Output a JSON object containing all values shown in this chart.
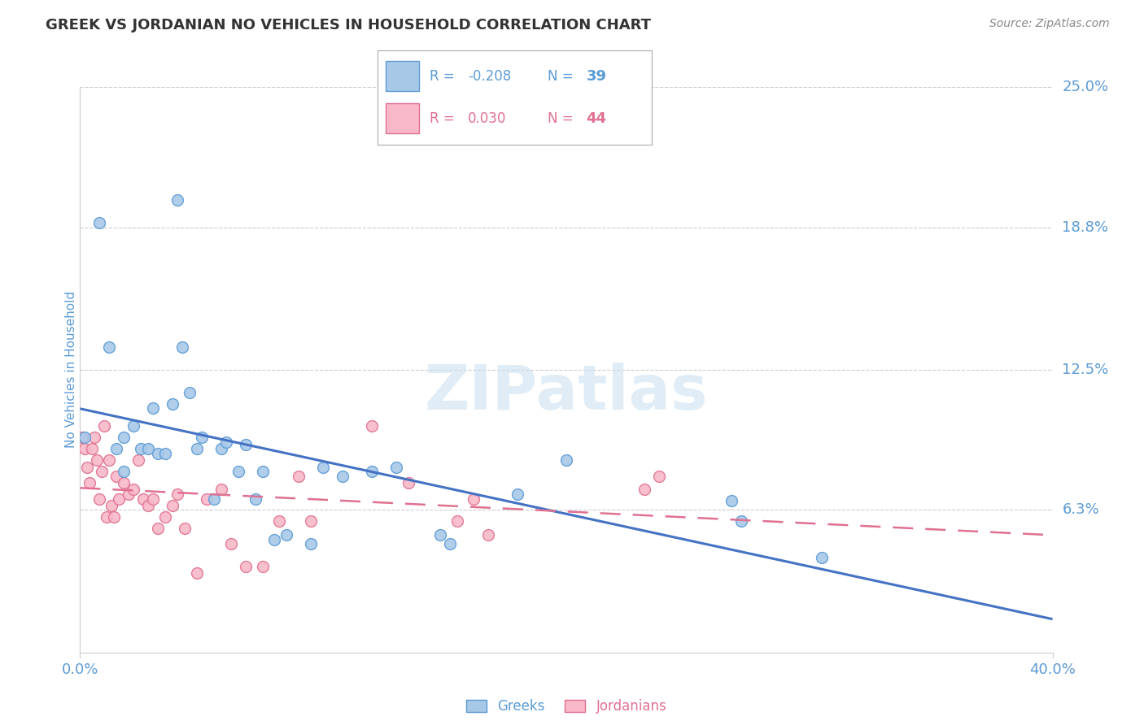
{
  "title": "GREEK VS JORDANIAN NO VEHICLES IN HOUSEHOLD CORRELATION CHART",
  "source": "Source: ZipAtlas.com",
  "ylabel": "No Vehicles in Household",
  "xlim": [
    0.0,
    0.4
  ],
  "ylim": [
    0.0,
    0.25
  ],
  "xtick_labels": [
    "0.0%",
    "40.0%"
  ],
  "ytick_labels": [
    "6.3%",
    "12.5%",
    "18.8%",
    "25.0%"
  ],
  "ytick_values": [
    0.063,
    0.125,
    0.188,
    0.25
  ],
  "watermark": "ZIPatlas",
  "greek_color": "#a8c8e8",
  "jordanian_color": "#f8b8c8",
  "greek_edge_color": "#5b9bd5",
  "jordanian_edge_color": "#e07090",
  "trend_greek_color": "#4472c4",
  "trend_jordanian_color": "#e07090",
  "R_greek": -0.208,
  "N_greek": 39,
  "R_jordanian": 0.03,
  "N_jordanian": 44,
  "greek_x": [
    0.002,
    0.008,
    0.012,
    0.015,
    0.018,
    0.018,
    0.022,
    0.025,
    0.028,
    0.03,
    0.032,
    0.035,
    0.038,
    0.04,
    0.042,
    0.045,
    0.048,
    0.05,
    0.055,
    0.058,
    0.06,
    0.065,
    0.068,
    0.072,
    0.075,
    0.08,
    0.085,
    0.095,
    0.1,
    0.108,
    0.12,
    0.13,
    0.148,
    0.152,
    0.18,
    0.2,
    0.268,
    0.272,
    0.305
  ],
  "greek_y": [
    0.095,
    0.19,
    0.135,
    0.09,
    0.095,
    0.08,
    0.1,
    0.09,
    0.09,
    0.108,
    0.088,
    0.088,
    0.11,
    0.2,
    0.135,
    0.115,
    0.09,
    0.095,
    0.068,
    0.09,
    0.093,
    0.08,
    0.092,
    0.068,
    0.08,
    0.05,
    0.052,
    0.048,
    0.082,
    0.078,
    0.08,
    0.082,
    0.052,
    0.048,
    0.07,
    0.085,
    0.067,
    0.058,
    0.042
  ],
  "jordanian_x": [
    0.001,
    0.002,
    0.003,
    0.004,
    0.005,
    0.006,
    0.007,
    0.008,
    0.009,
    0.01,
    0.011,
    0.012,
    0.013,
    0.014,
    0.015,
    0.016,
    0.018,
    0.02,
    0.022,
    0.024,
    0.026,
    0.028,
    0.03,
    0.032,
    0.035,
    0.038,
    0.04,
    0.043,
    0.048,
    0.052,
    0.058,
    0.062,
    0.068,
    0.075,
    0.082,
    0.09,
    0.095,
    0.12,
    0.135,
    0.155,
    0.162,
    0.168,
    0.232,
    0.238
  ],
  "jordanian_y": [
    0.095,
    0.09,
    0.082,
    0.075,
    0.09,
    0.095,
    0.085,
    0.068,
    0.08,
    0.1,
    0.06,
    0.085,
    0.065,
    0.06,
    0.078,
    0.068,
    0.075,
    0.07,
    0.072,
    0.085,
    0.068,
    0.065,
    0.068,
    0.055,
    0.06,
    0.065,
    0.07,
    0.055,
    0.035,
    0.068,
    0.072,
    0.048,
    0.038,
    0.038,
    0.058,
    0.078,
    0.058,
    0.1,
    0.075,
    0.058,
    0.068,
    0.052,
    0.072,
    0.078
  ],
  "background_color": "#ffffff",
  "grid_color": "#cccccc",
  "title_color": "#333333",
  "axis_label_color": "#5b9bd5",
  "tick_label_color": "#5b9bd5",
  "legend_greek_face": "#a8c8e8",
  "legend_jordan_face": "#f8b8c8",
  "legend_border": "#aaaaaa"
}
